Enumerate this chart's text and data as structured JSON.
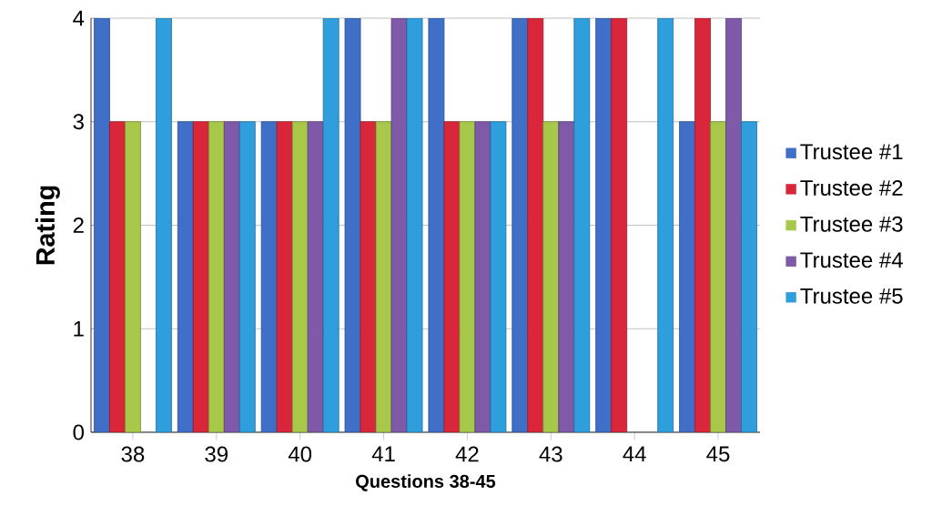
{
  "chart_data": {
    "type": "bar",
    "xlabel": "Questions 38-45",
    "ylabel": "Rating",
    "categories": [
      "38",
      "39",
      "40",
      "41",
      "42",
      "43",
      "44",
      "45"
    ],
    "series": [
      {
        "name": "Trustee #1",
        "color": "#3f6fc6",
        "values": [
          4,
          3,
          3,
          4,
          4,
          4,
          4,
          3
        ]
      },
      {
        "name": "Trustee #2",
        "color": "#d9263a",
        "values": [
          3,
          3,
          3,
          3,
          3,
          4,
          4,
          4
        ]
      },
      {
        "name": "Trustee #3",
        "color": "#a8c84a",
        "values": [
          3,
          3,
          3,
          3,
          3,
          3,
          null,
          3
        ]
      },
      {
        "name": "Trustee #4",
        "color": "#7e5aa8",
        "values": [
          null,
          3,
          3,
          4,
          3,
          3,
          null,
          4
        ]
      },
      {
        "name": "Trustee #5",
        "color": "#2e9fdc",
        "values": [
          4,
          3,
          4,
          4,
          3,
          4,
          4,
          3
        ]
      }
    ],
    "ylim": [
      0,
      4
    ],
    "yticks": [
      0,
      1,
      2,
      3,
      4
    ],
    "grid": "y",
    "legend": "right"
  }
}
